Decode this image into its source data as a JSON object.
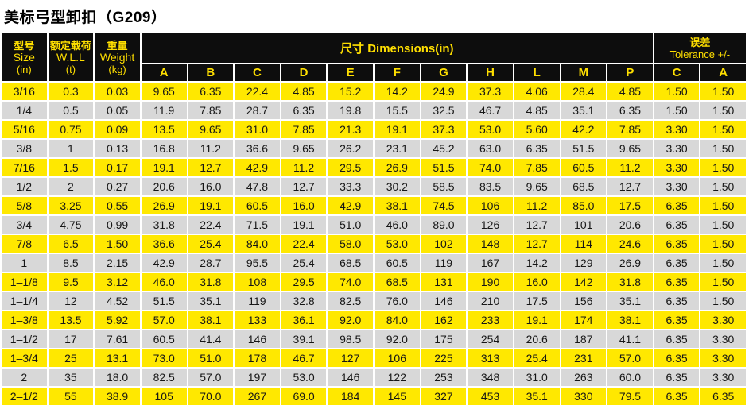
{
  "title": "美标弓型卸扣（G209）",
  "colors": {
    "row_yellow": "#ffe800",
    "row_gray": "#d8d8d8",
    "header_bg": "#0d0d0d",
    "header_text": "#ffdf00",
    "body_text": "#161616",
    "gap": "#ffffff"
  },
  "table": {
    "col_headers": {
      "size": [
        "型号",
        "Size",
        "(in)"
      ],
      "wll": [
        "额定载荷",
        "W.L.L",
        "(t)"
      ],
      "weight": [
        "重量",
        "Weight",
        "(kg)"
      ],
      "dimensions_label": "尺寸  Dimensions(in)",
      "dimension_letters": [
        "A",
        "B",
        "C",
        "D",
        "E",
        "F",
        "G",
        "H",
        "L",
        "M",
        "P"
      ],
      "tolerance_label": [
        "误差",
        "Tolerance +/-"
      ],
      "tolerance_letters": [
        "C",
        "A"
      ]
    },
    "rows": [
      [
        "3/16",
        "0.3",
        "0.03",
        "9.65",
        "6.35",
        "22.4",
        "4.85",
        "15.2",
        "14.2",
        "24.9",
        "37.3",
        "4.06",
        "28.4",
        "4.85",
        "1.50",
        "1.50"
      ],
      [
        "1/4",
        "0.5",
        "0.05",
        "11.9",
        "7.85",
        "28.7",
        "6.35",
        "19.8",
        "15.5",
        "32.5",
        "46.7",
        "4.85",
        "35.1",
        "6.35",
        "1.50",
        "1.50"
      ],
      [
        "5/16",
        "0.75",
        "0.09",
        "13.5",
        "9.65",
        "31.0",
        "7.85",
        "21.3",
        "19.1",
        "37.3",
        "53.0",
        "5.60",
        "42.2",
        "7.85",
        "3.30",
        "1.50"
      ],
      [
        "3/8",
        "1",
        "0.13",
        "16.8",
        "11.2",
        "36.6",
        "9.65",
        "26.2",
        "23.1",
        "45.2",
        "63.0",
        "6.35",
        "51.5",
        "9.65",
        "3.30",
        "1.50"
      ],
      [
        "7/16",
        "1.5",
        "0.17",
        "19.1",
        "12.7",
        "42.9",
        "11.2",
        "29.5",
        "26.9",
        "51.5",
        "74.0",
        "7.85",
        "60.5",
        "11.2",
        "3.30",
        "1.50"
      ],
      [
        "1/2",
        "2",
        "0.27",
        "20.6",
        "16.0",
        "47.8",
        "12.7",
        "33.3",
        "30.2",
        "58.5",
        "83.5",
        "9.65",
        "68.5",
        "12.7",
        "3.30",
        "1.50"
      ],
      [
        "5/8",
        "3.25",
        "0.55",
        "26.9",
        "19.1",
        "60.5",
        "16.0",
        "42.9",
        "38.1",
        "74.5",
        "106",
        "11.2",
        "85.0",
        "17.5",
        "6.35",
        "1.50"
      ],
      [
        "3/4",
        "4.75",
        "0.99",
        "31.8",
        "22.4",
        "71.5",
        "19.1",
        "51.0",
        "46.0",
        "89.0",
        "126",
        "12.7",
        "101",
        "20.6",
        "6.35",
        "1.50"
      ],
      [
        "7/8",
        "6.5",
        "1.50",
        "36.6",
        "25.4",
        "84.0",
        "22.4",
        "58.0",
        "53.0",
        "102",
        "148",
        "12.7",
        "114",
        "24.6",
        "6.35",
        "1.50"
      ],
      [
        "1",
        "8.5",
        "2.15",
        "42.9",
        "28.7",
        "95.5",
        "25.4",
        "68.5",
        "60.5",
        "119",
        "167",
        "14.2",
        "129",
        "26.9",
        "6.35",
        "1.50"
      ],
      [
        "1–1/8",
        "9.5",
        "3.12",
        "46.0",
        "31.8",
        "108",
        "29.5",
        "74.0",
        "68.5",
        "131",
        "190",
        "16.0",
        "142",
        "31.8",
        "6.35",
        "1.50"
      ],
      [
        "1–1/4",
        "12",
        "4.52",
        "51.5",
        "35.1",
        "119",
        "32.8",
        "82.5",
        "76.0",
        "146",
        "210",
        "17.5",
        "156",
        "35.1",
        "6.35",
        "1.50"
      ],
      [
        "1–3/8",
        "13.5",
        "5.92",
        "57.0",
        "38.1",
        "133",
        "36.1",
        "92.0",
        "84.0",
        "162",
        "233",
        "19.1",
        "174",
        "38.1",
        "6.35",
        "3.30"
      ],
      [
        "1–1/2",
        "17",
        "7.61",
        "60.5",
        "41.4",
        "146",
        "39.1",
        "98.5",
        "92.0",
        "175",
        "254",
        "20.6",
        "187",
        "41.1",
        "6.35",
        "3.30"
      ],
      [
        "1–3/4",
        "25",
        "13.1",
        "73.0",
        "51.0",
        "178",
        "46.7",
        "127",
        "106",
        "225",
        "313",
        "25.4",
        "231",
        "57.0",
        "6.35",
        "3.30"
      ],
      [
        "2",
        "35",
        "18.0",
        "82.5",
        "57.0",
        "197",
        "53.0",
        "146",
        "122",
        "253",
        "348",
        "31.0",
        "263",
        "60.0",
        "6.35",
        "3.30"
      ],
      [
        "2–1/2",
        "55",
        "38.9",
        "105",
        "70.0",
        "267",
        "69.0",
        "184",
        "145",
        "327",
        "453",
        "35.1",
        "330",
        "79.5",
        "6.35",
        "6.35"
      ]
    ]
  }
}
